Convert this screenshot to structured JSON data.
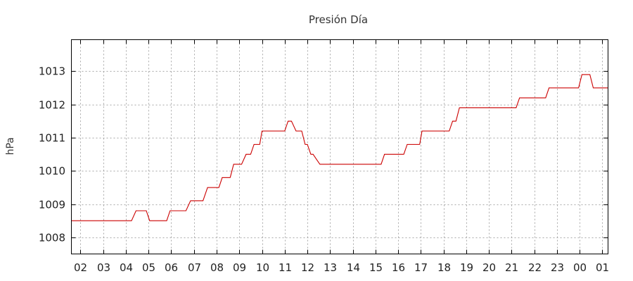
{
  "chart_data": {
    "type": "line",
    "title": "Presión Día",
    "xlabel": "",
    "ylabel": "hPa",
    "ylim": [
      1007.5,
      1013.95
    ],
    "yticks": [
      1008,
      1009,
      1010,
      1011,
      1012,
      1013
    ],
    "x_tick_labels": [
      "02",
      "03",
      "04",
      "05",
      "06",
      "07",
      "08",
      "09",
      "10",
      "11",
      "12",
      "13",
      "14",
      "15",
      "16",
      "17",
      "18",
      "19",
      "20",
      "21",
      "22",
      "23",
      "00",
      "01"
    ],
    "xlim_hours": [
      1.6,
      25.25
    ],
    "grid": true,
    "legend": "none",
    "series": [
      {
        "color": "#cc0000",
        "x_hours": [
          1.6,
          4.25,
          4.45,
          4.9,
          5.05,
          5.8,
          5.95,
          6.65,
          6.85,
          7.4,
          7.6,
          8.1,
          8.25,
          8.6,
          8.75,
          9.1,
          9.3,
          9.5,
          9.65,
          9.9,
          10.0,
          10.3,
          10.4,
          11.0,
          11.15,
          11.3,
          11.5,
          11.75,
          11.9,
          12.0,
          12.15,
          12.25,
          12.4,
          12.55,
          12.7,
          15.25,
          15.4,
          16.25,
          16.4,
          16.95,
          17.05,
          18.25,
          18.4,
          18.55,
          18.7,
          21.2,
          21.35,
          22.5,
          22.65,
          23.95,
          24.1,
          24.45,
          24.6,
          25.25
        ],
        "y": [
          1008.5,
          1008.5,
          1008.8,
          1008.8,
          1008.5,
          1008.5,
          1008.8,
          1008.8,
          1009.1,
          1009.1,
          1009.5,
          1009.5,
          1009.8,
          1009.8,
          1010.2,
          1010.2,
          1010.5,
          1010.5,
          1010.8,
          1010.8,
          1011.2,
          1011.2,
          1011.2,
          1011.2,
          1011.5,
          1011.5,
          1011.2,
          1011.2,
          1010.8,
          1010.8,
          1010.5,
          1010.5,
          1010.35,
          1010.2,
          1010.2,
          1010.2,
          1010.5,
          1010.5,
          1010.8,
          1010.8,
          1011.2,
          1011.2,
          1011.5,
          1011.5,
          1011.9,
          1011.9,
          1012.2,
          1012.2,
          1012.5,
          1012.5,
          1012.9,
          1012.9,
          1012.5,
          1012.5
        ]
      }
    ]
  }
}
